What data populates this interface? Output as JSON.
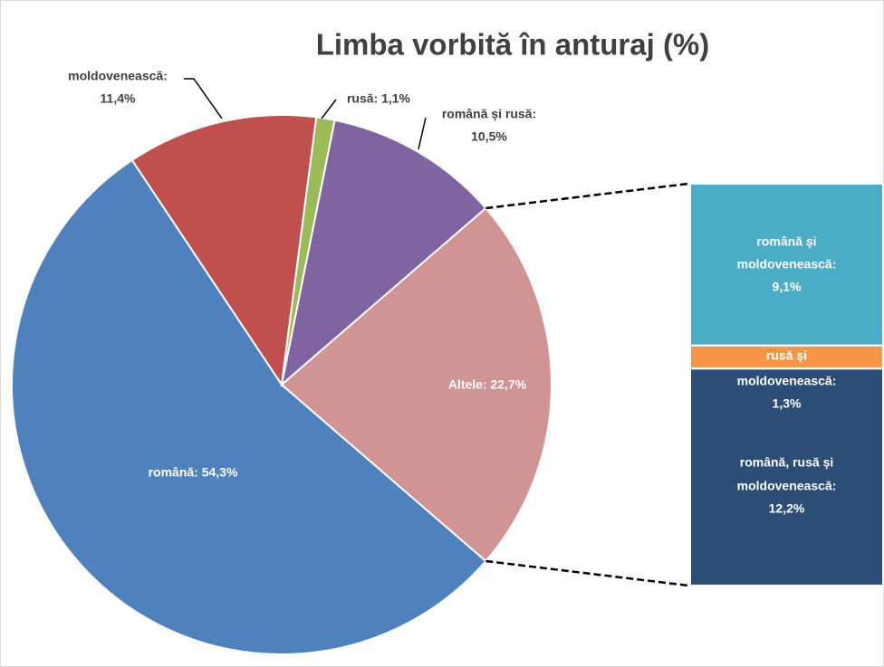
{
  "chart_data": {
    "type": "pie-of-bar",
    "title": "Limba vorbită în anturaj (%)",
    "values": [
      54.3,
      11.4,
      1.1,
      10.5,
      22.7
    ],
    "value_labels": [
      [
        "română: 54,3%"
      ],
      [
        "moldovenească:",
        "11,4%"
      ],
      [
        "rusă: 1,1%"
      ],
      [
        "română și rusă:",
        "10,5%"
      ],
      [
        "Altele: 22,7%"
      ]
    ],
    "colors": [
      "#4f81bd",
      "#c0504d",
      "#9bbb59",
      "#8064a2",
      "#d09494"
    ],
    "bar": {
      "values": [
        9.1,
        1.3,
        12.2
      ],
      "value_labels": [
        [
          "română și",
          "moldovenească:",
          "9,1%"
        ],
        [
          "rusă și",
          "moldovenească:",
          "1,3%"
        ],
        [
          "română, rusă și",
          "moldovenească:",
          "12,2%"
        ]
      ],
      "colors": [
        "#4bacc6",
        "#f79646",
        "#2c4d75"
      ]
    }
  }
}
